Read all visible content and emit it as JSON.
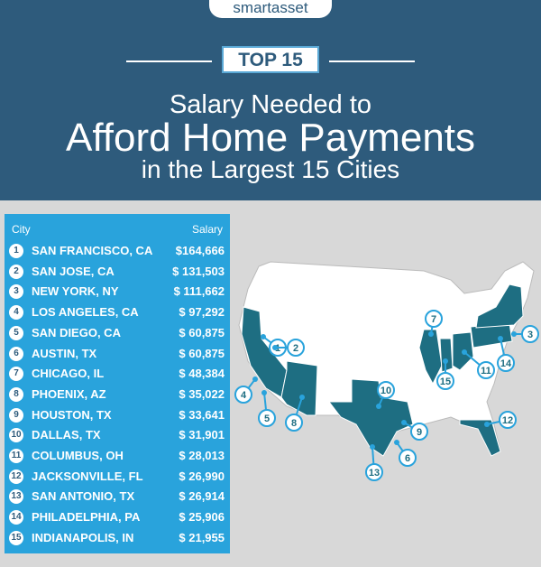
{
  "brand": "smartasset",
  "badge": "TOP 15",
  "title": {
    "line1": "Salary Needed to",
    "line2": "Afford Home Payments",
    "line3": "in the Largest 15 Cities"
  },
  "table": {
    "headers": [
      "City",
      "Salary"
    ],
    "rows": [
      {
        "rank": 1,
        "city": "SAN FRANCISCO, CA",
        "salary": "$164,666"
      },
      {
        "rank": 2,
        "city": "SAN JOSE, CA",
        "salary": "$ 131,503"
      },
      {
        "rank": 3,
        "city": "NEW YORK, NY",
        "salary": "$ 111,662"
      },
      {
        "rank": 4,
        "city": "LOS ANGELES, CA",
        "salary": "$ 97,292"
      },
      {
        "rank": 5,
        "city": "SAN DIEGO, CA",
        "salary": "$ 60,875"
      },
      {
        "rank": 6,
        "city": "AUSTIN, TX",
        "salary": "$ 60,875"
      },
      {
        "rank": 7,
        "city": "CHICAGO, IL",
        "salary": "$ 48,384"
      },
      {
        "rank": 8,
        "city": "PHOENIX, AZ",
        "salary": "$ 35,022"
      },
      {
        "rank": 9,
        "city": "HOUSTON, TX",
        "salary": "$ 33,641"
      },
      {
        "rank": 10,
        "city": "DALLAS, TX",
        "salary": "$ 31,901"
      },
      {
        "rank": 11,
        "city": "COLUMBUS, OH",
        "salary": "$ 28,013"
      },
      {
        "rank": 12,
        "city": "JACKSONVILLE, FL",
        "salary": "$ 26,990"
      },
      {
        "rank": 13,
        "city": "SAN ANTONIO, TX",
        "salary": "$ 26,914"
      },
      {
        "rank": 14,
        "city": "PHILADELPHIA, PA",
        "salary": "$ 25,906"
      },
      {
        "rank": 15,
        "city": "INDIANAPOLIS, IN",
        "salary": "$ 21,955"
      }
    ]
  }
}
